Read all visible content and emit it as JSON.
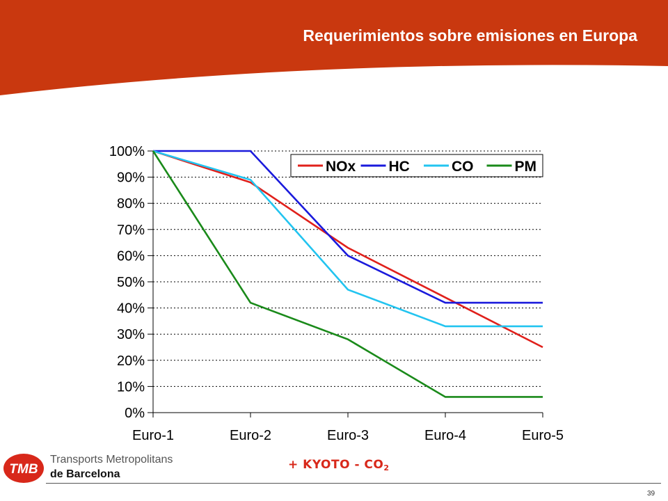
{
  "slide": {
    "title": "Requerimientos sobre emisiones en Europa",
    "note_prefix": "+ KYOTO - CO",
    "note_subscript": "2",
    "page_number": "39",
    "colors": {
      "header": "#c9380f",
      "note": "#d8281a"
    }
  },
  "logo": {
    "badge_text": "TMB",
    "line1": "Transports Metropolitans",
    "line2": "de Barcelona"
  },
  "chart_data": {
    "type": "line",
    "categories": [
      "Euro-1",
      "Euro-2",
      "Euro-3",
      "Euro-4",
      "Euro-5"
    ],
    "y_ticks": [
      "0%",
      "10%",
      "20%",
      "30%",
      "40%",
      "50%",
      "60%",
      "70%",
      "80%",
      "90%",
      "100%"
    ],
    "ylim": [
      0,
      100
    ],
    "grid": "horizontal-dotted",
    "legend_position": "top-right",
    "series": [
      {
        "name": "NOx",
        "color": "#e0201b",
        "values": [
          100,
          88,
          63,
          44,
          25
        ]
      },
      {
        "name": "HC",
        "color": "#1a1adc",
        "values": [
          100,
          100,
          60,
          42,
          42
        ]
      },
      {
        "name": "CO",
        "color": "#22c4f0",
        "values": [
          100,
          89,
          47,
          33,
          33
        ]
      },
      {
        "name": "PM",
        "color": "#1a8a1a",
        "values": [
          100,
          42,
          28,
          6,
          6
        ]
      }
    ]
  }
}
